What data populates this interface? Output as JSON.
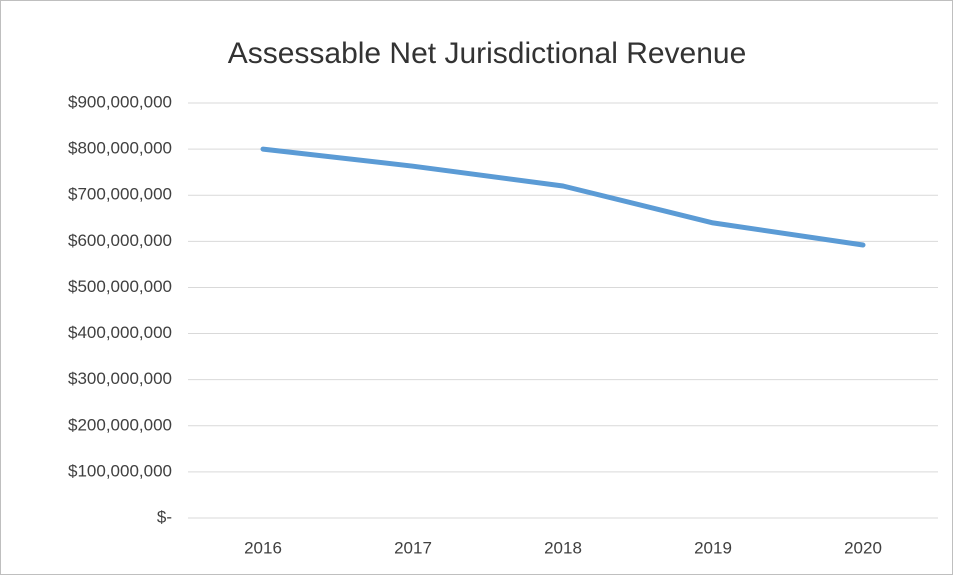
{
  "chart_data": {
    "type": "line",
    "title": "Assessable Net Jurisdictional Revenue",
    "categories": [
      "2016",
      "2017",
      "2018",
      "2019",
      "2020"
    ],
    "series": [
      {
        "name": "Assessable Net Jurisdictional Revenue",
        "color": "#5b9bd5",
        "values": [
          800000000,
          763000000,
          720000000,
          640000000,
          592000000
        ]
      }
    ],
    "ylim": [
      0,
      900000000
    ],
    "yticks": [
      {
        "value": 0,
        "label": "$-"
      },
      {
        "value": 100000000,
        "label": "$100,000,000"
      },
      {
        "value": 200000000,
        "label": "$200,000,000"
      },
      {
        "value": 300000000,
        "label": "$300,000,000"
      },
      {
        "value": 400000000,
        "label": "$400,000,000"
      },
      {
        "value": 500000000,
        "label": "$500,000,000"
      },
      {
        "value": 600000000,
        "label": "$600,000,000"
      },
      {
        "value": 700000000,
        "label": "$700,000,000"
      },
      {
        "value": 800000000,
        "label": "$800,000,000"
      },
      {
        "value": 900000000,
        "label": "$900,000,000"
      }
    ],
    "grid": true
  }
}
